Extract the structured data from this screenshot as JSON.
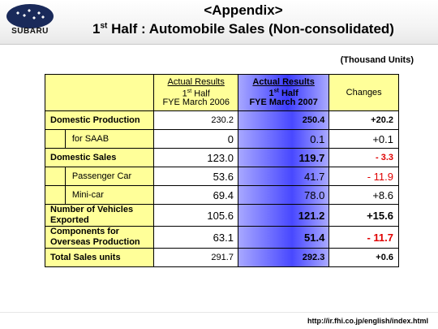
{
  "brand": {
    "name": "SUBARU"
  },
  "title": {
    "line1": "<Appendix>",
    "line2_prefix": "1",
    "line2_sup": "st",
    "line2_rest": " Half : Automobile Sales (Non-consolidated)"
  },
  "units": "(Thousand Units)",
  "columns": {
    "prev": {
      "l1": "Actual Results",
      "l2a": "1",
      "l2sup": "st",
      "l2b": " Half",
      "l3": "FYE March 2006"
    },
    "curr": {
      "l1": "Actual Results",
      "l2a": "1",
      "l2sup": "st",
      "l2b": " Half",
      "l3": "FYE March 2007"
    },
    "chg": "Changes"
  },
  "rows": [
    {
      "label": "Domestic Production",
      "prev": "230.2",
      "curr": "250.4",
      "chg": "+20.2"
    },
    {
      "label": "for SAAB",
      "prev": "0",
      "curr": "0.1",
      "chg": "+0.1"
    },
    {
      "label": "Domestic Sales",
      "prev": "123.0",
      "curr": "119.7",
      "chg": "- 3.3"
    },
    {
      "label": "Passenger Car",
      "prev": "53.6",
      "curr": "41.7",
      "chg": "- 11.9"
    },
    {
      "label": "Mini-car",
      "prev": "69.4",
      "curr": "78.0",
      "chg": "+8.6"
    },
    {
      "label_l1": "Number of Vehicles",
      "label_l2": "Exported",
      "prev": "105.6",
      "curr": "121.2",
      "chg": "+15.6"
    },
    {
      "label_l1": "Components for",
      "label_l2": "Overseas Production",
      "prev": "63.1",
      "curr": "51.4",
      "chg": "- 11.7"
    },
    {
      "label": "Total Sales units",
      "prev": "291.7",
      "curr": "292.3",
      "chg": "+0.6"
    }
  ],
  "footer": "http://ir.fhi.co.jp/english/index.html",
  "colors": {
    "header_yellow": "#ffff99",
    "highlight_blue": "#4848ff",
    "negative_red": "#e00000"
  }
}
